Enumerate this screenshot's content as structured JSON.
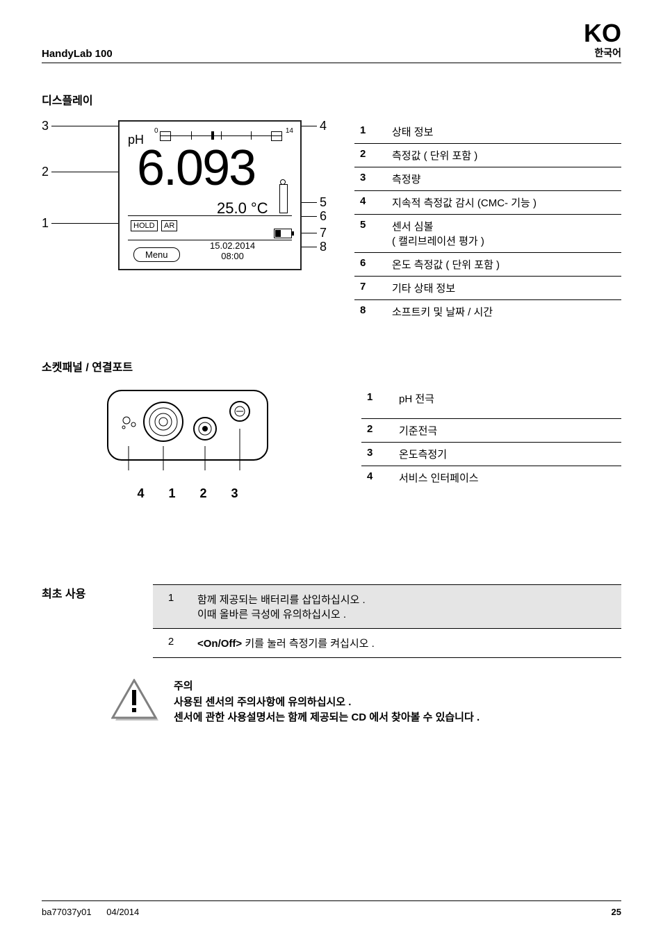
{
  "header": {
    "product": "HandyLab 100",
    "lang_big": "KO",
    "lang_sub": "한국어"
  },
  "display_section": {
    "title": "디스플레이",
    "lcd": {
      "ph_label": "pH",
      "scale_min": "0",
      "scale_max": "14",
      "value": "6.093",
      "temp": "25.0 °C",
      "hold": "HOLD",
      "ar": "AR",
      "menu": "Menu",
      "date": "15.02.2014",
      "time": "08:00"
    },
    "callouts_left": {
      "c1": "3",
      "c2": "2",
      "c3": "1"
    },
    "callouts_right": {
      "c4": "4",
      "c5": "5",
      "c6": "6",
      "c7": "7",
      "c8": "8"
    },
    "legend": [
      {
        "n": "1",
        "text": "상태 정보"
      },
      {
        "n": "2",
        "text": "측정값 ( 단위 포함 )"
      },
      {
        "n": "3",
        "text": "측정량"
      },
      {
        "n": "4",
        "text": "지속적 측정값 감시 (CMC- 기능 )"
      },
      {
        "n": "5",
        "text": "센서 심볼\n( 캘리브레이션 평가 )"
      },
      {
        "n": "6",
        "text": "온도 측정값 ( 단위 포함 )"
      },
      {
        "n": "7",
        "text": "기타 상태 정보"
      },
      {
        "n": "8",
        "text": "소프트키 및 날짜 / 시간"
      }
    ]
  },
  "socket_section": {
    "title": "소켓패널 / 연결포트",
    "numbers": [
      "4",
      "1",
      "2",
      "3"
    ],
    "legend": [
      {
        "n": "1",
        "text": "pH 전극"
      },
      {
        "n": "2",
        "text": "기준전극"
      },
      {
        "n": "3",
        "text": "온도측정기"
      },
      {
        "n": "4",
        "text": "서비스 인터페이스"
      }
    ]
  },
  "init_section": {
    "title": "최초 사용",
    "steps": [
      {
        "n": "1",
        "text": "함께 제공되는 배터리를 삽입하십시오 .\n이때 올바른 극성에 유의하십시오 ."
      },
      {
        "n": "2",
        "html": "<b>&lt;On/Off&gt;</b> 키를 눌러 측정기를 켜십시오 ."
      }
    ]
  },
  "caution": {
    "title": "주의",
    "line1": "사용된 센서의 주의사항에 유의하십시오 .",
    "line2": "센서에 관한 사용설명서는 함께 제공되는 CD 에서 찾아볼 수 있습니다 ."
  },
  "footer": {
    "doc": "ba77037y01",
    "date": "04/2014",
    "page": "25"
  },
  "colors": {
    "text": "#000000",
    "bg": "#ffffff",
    "shade": "#e5e5e5",
    "warn_border": "#808080",
    "warn_shadow": "#c0c0c0"
  }
}
